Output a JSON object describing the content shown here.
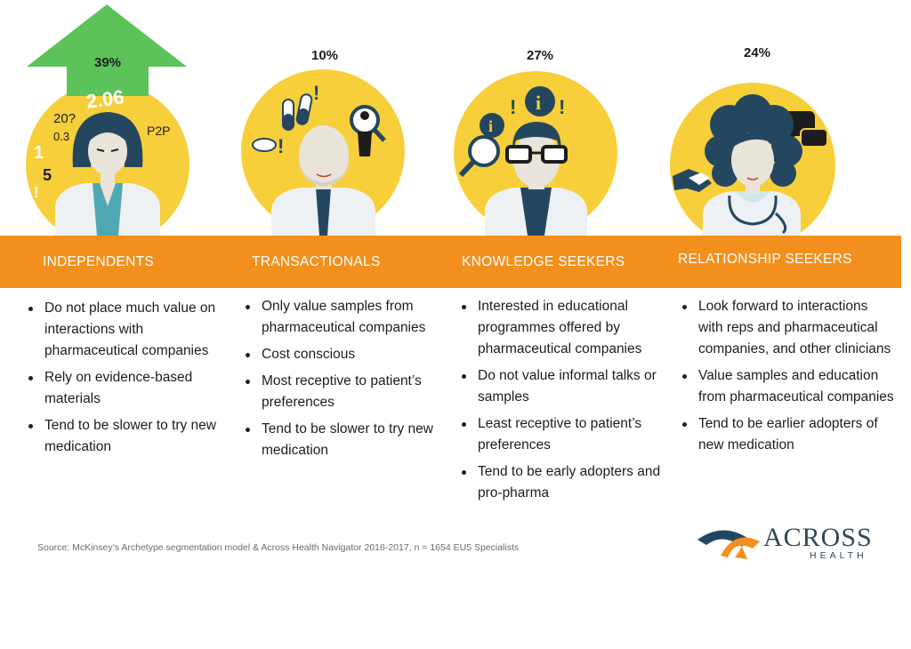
{
  "segments": [
    {
      "percent": "39%",
      "title": "INDEPENDENTS",
      "bullets": [
        "Do not place much value on interactions with pharmaceutical companies",
        "Rely on evidence-based materials",
        "Tend to be slower to try new medication"
      ],
      "doodles": [
        "2.06",
        "20?",
        "0.3",
        "P2P",
        "1",
        "5",
        "!"
      ]
    },
    {
      "percent": "10%",
      "title": "TRANSACTIONALS",
      "bullets": [
        "Only value samples from pharmaceutical companies",
        "Cost conscious",
        "Most receptive to patient’s preferences",
        "Tend to be slower to try new medication"
      ]
    },
    {
      "percent": "27%",
      "title": "KNOWLEDGE SEEKERS",
      "bullets": [
        "Interested in educational programmes offered by pharmaceutical companies",
        "Do not value informal talks or samples",
        "Least receptive to patient’s preferences",
        "Tend to be early adopters and pro-pharma"
      ]
    },
    {
      "percent": "24%",
      "title": "RELATIONSHIP SEEKERS",
      "bullets": [
        "Look forward to interactions with reps and pharmaceutical companies, and other clinicians",
        "Value samples  and education from pharmaceutical companies",
        "Tend to be earlier adopters of new medication"
      ]
    }
  ],
  "source": "Source: McKinsey’s Archetype segmentation model & Across Health Navigator 2016-2017, n = 1654 EU5 Specialists",
  "logo": {
    "word": "ACROSS",
    "sub": "HEALTH"
  },
  "colors": {
    "orange": "#f3901d",
    "yellow": "#f6cf3a",
    "green": "#5cc35a",
    "navy": "#24475f",
    "teal": "#4ea8b3",
    "skin": "#e9e4da"
  },
  "icons": [
    "up-arrow-icon",
    "magnifier-icon",
    "info-icon",
    "pills-icon",
    "person-icon",
    "speech-bubble-icon",
    "handshake-icon",
    "stethoscope-icon"
  ]
}
